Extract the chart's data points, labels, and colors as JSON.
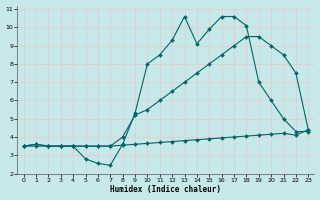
{
  "xlabel": "Humidex (Indice chaleur)",
  "xlim": [
    -0.5,
    23.5
  ],
  "ylim": [
    2,
    11.2
  ],
  "xticks": [
    0,
    1,
    2,
    3,
    4,
    5,
    6,
    7,
    8,
    9,
    10,
    11,
    12,
    13,
    14,
    15,
    16,
    17,
    18,
    19,
    20,
    21,
    22,
    23
  ],
  "yticks": [
    2,
    3,
    4,
    5,
    6,
    7,
    8,
    9,
    10,
    11
  ],
  "bg_color": "#c6e8e8",
  "grid_color": "#e8c8c8",
  "line_color": "#006666",
  "line1_x": [
    0,
    1,
    2,
    3,
    4,
    5,
    6,
    7,
    8,
    9,
    10,
    11,
    12,
    13,
    14,
    15,
    16,
    17,
    18,
    19,
    20,
    21,
    22,
    23
  ],
  "line1_y": [
    3.5,
    3.6,
    3.5,
    3.5,
    3.5,
    2.8,
    2.55,
    2.45,
    3.6,
    5.3,
    8.0,
    8.5,
    9.3,
    10.6,
    9.1,
    9.9,
    10.6,
    10.6,
    10.1,
    7.0,
    6.0,
    5.0,
    4.3,
    4.3
  ],
  "line2_x": [
    0,
    1,
    2,
    3,
    4,
    5,
    6,
    7,
    8,
    9,
    10,
    11,
    12,
    13,
    14,
    15,
    16,
    17,
    18,
    19,
    20,
    21,
    22,
    23
  ],
  "line2_y": [
    3.5,
    3.6,
    3.5,
    3.5,
    3.5,
    3.5,
    3.5,
    3.5,
    4.0,
    5.2,
    5.5,
    6.0,
    6.5,
    7.0,
    7.5,
    8.0,
    8.5,
    9.0,
    9.5,
    9.5,
    9.0,
    8.5,
    7.5,
    4.4
  ],
  "line3_x": [
    0,
    1,
    2,
    3,
    4,
    5,
    6,
    7,
    8,
    9,
    10,
    11,
    12,
    13,
    14,
    15,
    16,
    17,
    18,
    19,
    20,
    21,
    22,
    23
  ],
  "line3_y": [
    3.5,
    3.5,
    3.5,
    3.5,
    3.5,
    3.5,
    3.5,
    3.5,
    3.55,
    3.6,
    3.65,
    3.7,
    3.75,
    3.8,
    3.85,
    3.9,
    3.95,
    4.0,
    4.05,
    4.1,
    4.15,
    4.2,
    4.1,
    4.4
  ]
}
